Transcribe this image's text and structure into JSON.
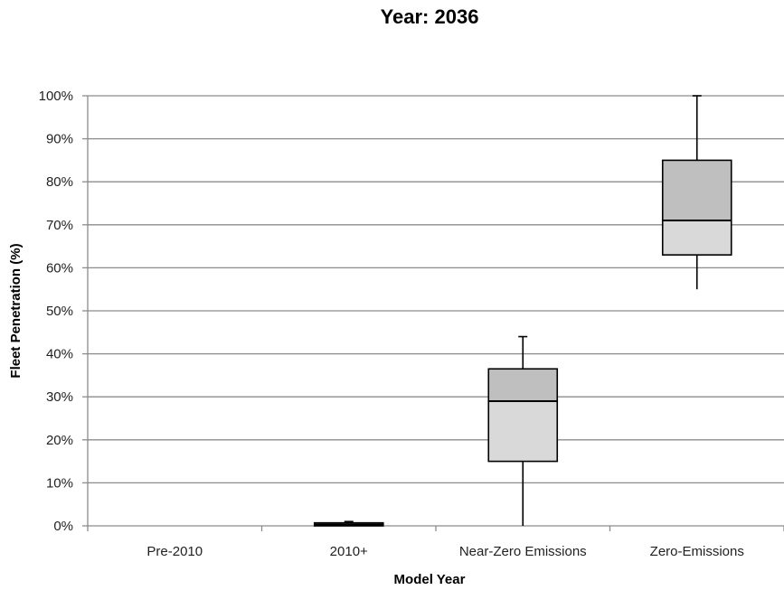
{
  "chart_data": {
    "type": "box",
    "title": "Year: 2036",
    "xlabel": "Model Year",
    "ylabel": "Fleet Penetration (%)",
    "ylim": [
      0,
      100
    ],
    "y_ticks": [
      "0%",
      "10%",
      "20%",
      "30%",
      "40%",
      "50%",
      "60%",
      "70%",
      "80%",
      "90%",
      "100%"
    ],
    "grid": true,
    "categories": [
      "Pre-2010",
      "2010+",
      "Near-Zero Emissions",
      "Zero-Emissions"
    ],
    "boxes": [
      {
        "category": "Pre-2010",
        "min": 0,
        "q1": 0,
        "median": 0,
        "q3": 0,
        "max": 0
      },
      {
        "category": "2010+",
        "min": 0,
        "q1": 0,
        "median": 0.3,
        "q3": 0.7,
        "max": 1
      },
      {
        "category": "Near-Zero Emissions",
        "min": 0,
        "q1": 15,
        "median": 29,
        "q3": 36.5,
        "max": 44
      },
      {
        "category": "Zero-Emissions",
        "min": 55,
        "q1": 63,
        "median": 71,
        "q3": 85,
        "max": 100
      }
    ],
    "colors": {
      "lower_box": "#d9d9d9",
      "upper_box": "#bfbfbf",
      "grid": "#8c8c8c"
    }
  }
}
